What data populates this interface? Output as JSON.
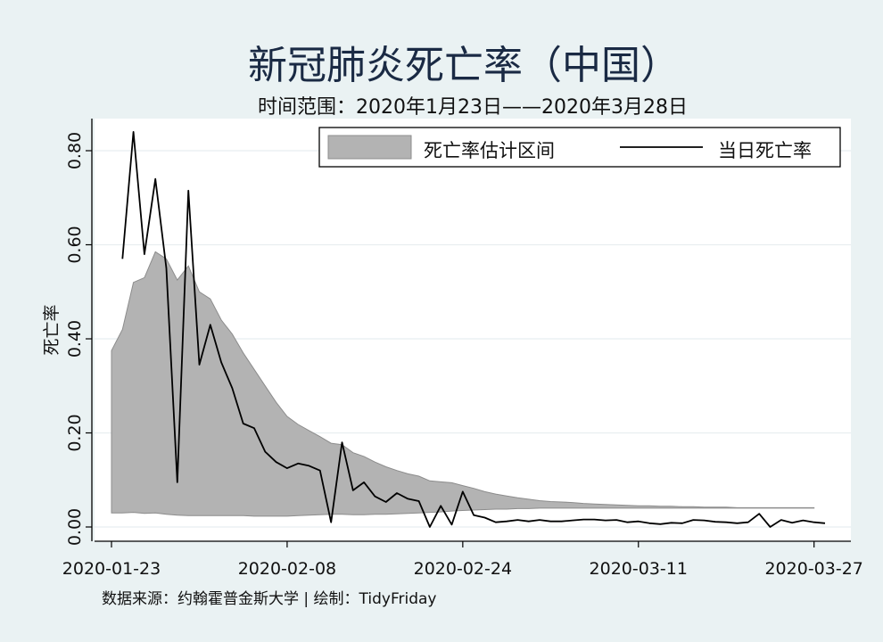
{
  "chart_data": {
    "type": "area",
    "title": "新冠肺炎死亡率（中国）",
    "subtitle": "时间范围：2020年1月23日——2020年3月28日",
    "ylabel": "死亡率",
    "xlabel": "",
    "ylim": [
      0,
      0.87
    ],
    "yticks": [
      0,
      0.2,
      0.4,
      0.6,
      0.8
    ],
    "ytick_labels": [
      "0.00",
      "0.20",
      "0.40",
      "0.60",
      "0.80"
    ],
    "xticks": [
      "2020-01-23",
      "2020-02-08",
      "2020-02-24",
      "2020-03-11",
      "2020-03-27"
    ],
    "x_range": [
      "2020-01-23",
      "2020-03-28"
    ],
    "grid": "horizontal",
    "legend_position": "top-right",
    "footer": "数据来源：约翰霍普金斯大学 | 绘制：TidyFriday",
    "colors": {
      "background": "#eaf2f3",
      "plot_background": "#ffffff",
      "band_fill": "#b3b3b3",
      "band_edge": "#8c8c8c",
      "line": "#000000",
      "title": "#1a2a44",
      "grid": "#e8eef0"
    },
    "series": [
      {
        "name": "死亡率估计区间",
        "kind": "band",
        "start_date": "2020-01-23",
        "lower": [
          0.03,
          0.03,
          0.031,
          0.029,
          0.03,
          0.027,
          0.025,
          0.024,
          0.024,
          0.024,
          0.024,
          0.024,
          0.024,
          0.023,
          0.023,
          0.023,
          0.023,
          0.024,
          0.025,
          0.026,
          0.027,
          0.027,
          0.026,
          0.026,
          0.027,
          0.027,
          0.028,
          0.029,
          0.03,
          0.031,
          0.032,
          0.034,
          0.035,
          0.036,
          0.037,
          0.038,
          0.038,
          0.039,
          0.039,
          0.04,
          0.04,
          0.04,
          0.04,
          0.04,
          0.04,
          0.04,
          0.04,
          0.04,
          0.04,
          0.04,
          0.04,
          0.04,
          0.04,
          0.04,
          0.04,
          0.04,
          0.04,
          0.04,
          0.04,
          0.04,
          0.04,
          0.04,
          0.04,
          0.04,
          0.04
        ],
        "upper": [
          0.375,
          0.42,
          0.52,
          0.53,
          0.585,
          0.57,
          0.525,
          0.555,
          0.5,
          0.485,
          0.44,
          0.41,
          0.37,
          0.335,
          0.3,
          0.265,
          0.235,
          0.218,
          0.205,
          0.192,
          0.178,
          0.175,
          0.158,
          0.15,
          0.138,
          0.128,
          0.12,
          0.113,
          0.108,
          0.098,
          0.096,
          0.094,
          0.088,
          0.082,
          0.075,
          0.07,
          0.066,
          0.062,
          0.059,
          0.056,
          0.054,
          0.053,
          0.052,
          0.05,
          0.049,
          0.048,
          0.047,
          0.046,
          0.045,
          0.045,
          0.044,
          0.044,
          0.043,
          0.043,
          0.042,
          0.042,
          0.042,
          0.041,
          0.041,
          0.041,
          0.041,
          0.041,
          0.041,
          0.041,
          0.041
        ]
      },
      {
        "name": "当日死亡率",
        "kind": "line",
        "start_date": "2020-01-24",
        "values": [
          0.57,
          0.84,
          0.58,
          0.74,
          0.55,
          0.095,
          0.715,
          0.345,
          0.43,
          0.35,
          0.295,
          0.22,
          0.21,
          0.16,
          0.138,
          0.125,
          0.135,
          0.13,
          0.12,
          0.01,
          0.18,
          0.078,
          0.095,
          0.065,
          0.053,
          0.072,
          0.06,
          0.055,
          0.0,
          0.045,
          0.005,
          0.075,
          0.025,
          0.02,
          0.01,
          0.012,
          0.015,
          0.012,
          0.015,
          0.012,
          0.012,
          0.014,
          0.016,
          0.016,
          0.014,
          0.015,
          0.01,
          0.012,
          0.008,
          0.006,
          0.009,
          0.008,
          0.015,
          0.014,
          0.011,
          0.01,
          0.008,
          0.01,
          0.028,
          0.0,
          0.015,
          0.009,
          0.014,
          0.01,
          0.008
        ]
      }
    ]
  }
}
